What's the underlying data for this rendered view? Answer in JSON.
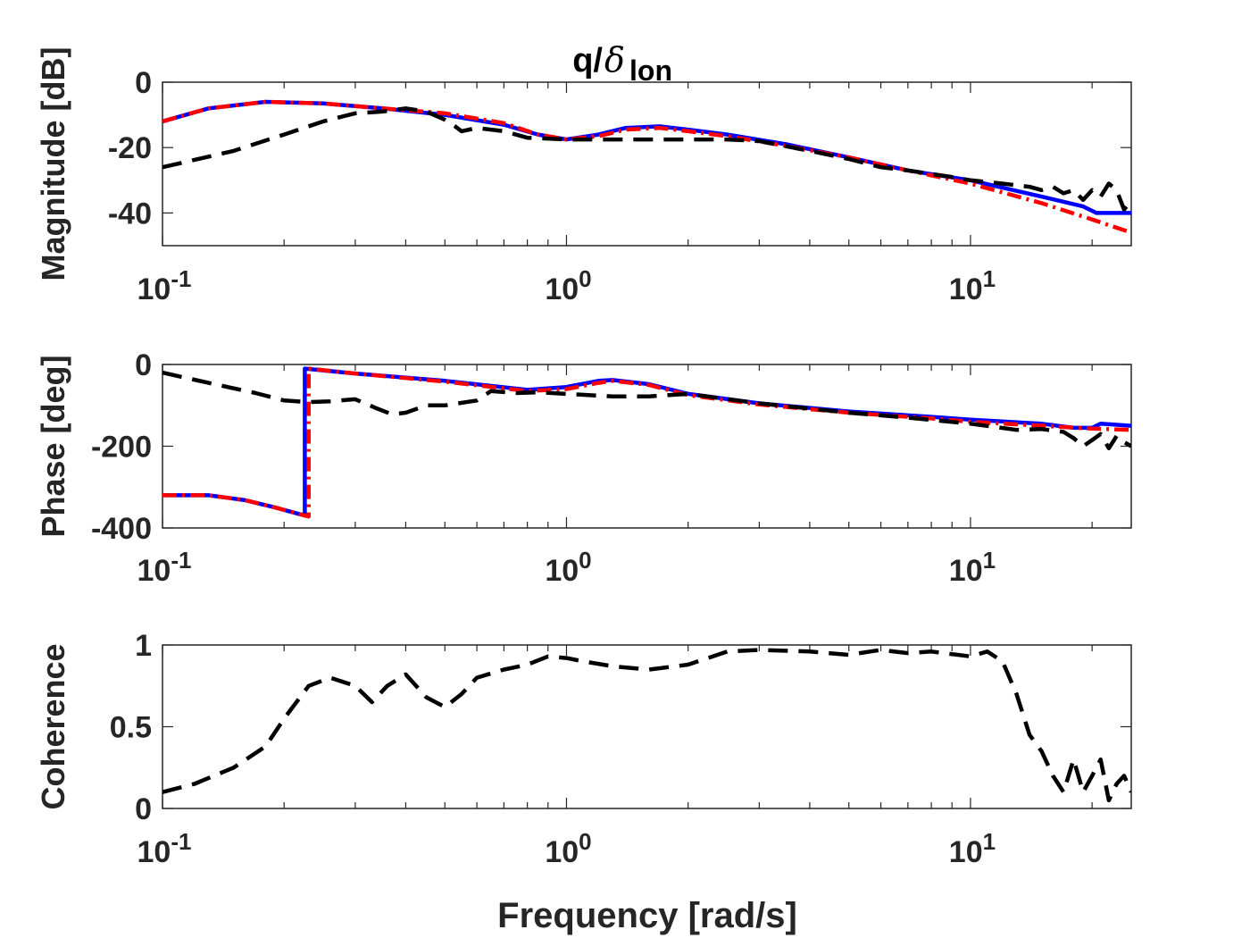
{
  "chart_data": {
    "type": "line",
    "title_main": "q/",
    "title_delta": "δ",
    "title_sub": "lon",
    "xlabel": "Frequency [rad/s]",
    "xscale": "log",
    "xlim": [
      0.1,
      25
    ],
    "xticks": [
      {
        "value": 0.1,
        "base": "10",
        "exp": "-1"
      },
      {
        "value": 1,
        "base": "10",
        "exp": "0"
      },
      {
        "value": 10,
        "base": "10",
        "exp": "1"
      }
    ],
    "series_styles": [
      {
        "name": "blue-solid",
        "color": "#0000ff",
        "dash": ""
      },
      {
        "name": "red-dashdot",
        "color": "#ff0000",
        "dash": "16 6 3 6"
      },
      {
        "name": "black-dashed",
        "color": "#000000",
        "dash": "22 12"
      }
    ],
    "panels": [
      {
        "id": "magnitude",
        "ylabel": "Magnitude [dB]",
        "ylim": [
          -50,
          0
        ],
        "yticks": [
          {
            "value": 0,
            "label": "0"
          },
          {
            "value": -20,
            "label": "-20"
          },
          {
            "value": -40,
            "label": "-40"
          }
        ],
        "series": [
          {
            "style": "blue-solid",
            "x": [
              0.1,
              0.13,
              0.18,
              0.25,
              0.35,
              0.5,
              0.7,
              0.85,
              1.0,
              1.2,
              1.4,
              1.7,
              2.0,
              2.5,
              3.5,
              5,
              7,
              10,
              15,
              19,
              20.5,
              25
            ],
            "y": [
              -12,
              -8,
              -6,
              -6.5,
              -8,
              -10,
              -13,
              -16,
              -17.5,
              -16,
              -14,
              -13.5,
              -14.5,
              -16,
              -19,
              -23,
              -27,
              -30,
              -35,
              -38,
              -40,
              -40
            ]
          },
          {
            "style": "red-dashdot",
            "x": [
              0.1,
              0.13,
              0.18,
              0.25,
              0.35,
              0.5,
              0.7,
              0.85,
              1.0,
              1.2,
              1.4,
              1.7,
              2.0,
              2.5,
              3.5,
              5,
              7,
              10,
              15,
              20,
              25
            ],
            "y": [
              -12,
              -8,
              -6,
              -6.5,
              -8,
              -9.5,
              -12.5,
              -16,
              -17.5,
              -16.5,
              -14.5,
              -14,
              -15,
              -16.5,
              -19.5,
              -23,
              -27,
              -31,
              -37,
              -42,
              -46
            ]
          },
          {
            "style": "black-dashed",
            "x": [
              0.1,
              0.15,
              0.2,
              0.25,
              0.3,
              0.35,
              0.4,
              0.45,
              0.5,
              0.53,
              0.55,
              0.6,
              0.7,
              0.8,
              1.0,
              1.3,
              1.6,
              2.0,
              2.5,
              3,
              4,
              5,
              6,
              7,
              9,
              10,
              12,
              14,
              15,
              16,
              17,
              18,
              19,
              20,
              21,
              22,
              23,
              24,
              25
            ],
            "y": [
              -26,
              -21,
              -16,
              -12,
              -9.5,
              -9,
              -8,
              -9,
              -11.5,
              -13.5,
              -15,
              -14,
              -15,
              -17,
              -17.5,
              -17.5,
              -17.5,
              -17.5,
              -17.5,
              -18,
              -21,
              -23.5,
              -26,
              -27,
              -29,
              -30,
              -31,
              -32,
              -33,
              -32,
              -34,
              -33,
              -36,
              -33,
              -35,
              -31,
              -33,
              -39,
              -36
            ]
          }
        ]
      },
      {
        "id": "phase",
        "ylabel": "Phase [deg]",
        "ylim": [
          -400,
          0
        ],
        "yticks": [
          {
            "value": 0,
            "label": "0"
          },
          {
            "value": -200,
            "label": "-200"
          },
          {
            "value": -400,
            "label": "-400"
          }
        ],
        "series": [
          {
            "style": "blue-solid",
            "x": [
              0.1,
              0.13,
              0.16,
              0.19,
              0.22,
              0.225,
              0.225,
              0.3,
              0.5,
              0.8,
              1.0,
              1.2,
              1.3,
              1.6,
              2.0,
              3,
              5,
              8,
              10,
              15,
              18,
              20,
              21,
              25
            ],
            "y": [
              -320,
              -320,
              -332,
              -350,
              -367,
              -367,
              -10,
              -22,
              -40,
              -62,
              -55,
              -40,
              -38,
              -48,
              -72,
              -95,
              -115,
              -128,
              -135,
              -145,
              -155,
              -155,
              -145,
              -150
            ]
          },
          {
            "style": "red-dashdot",
            "x": [
              0.1,
              0.13,
              0.16,
              0.19,
              0.22,
              0.23,
              0.23,
              0.3,
              0.5,
              0.8,
              1.0,
              1.2,
              1.3,
              1.6,
              2.0,
              3,
              5,
              8,
              10,
              15,
              20,
              25
            ],
            "y": [
              -320,
              -320,
              -332,
              -350,
              -367,
              -372,
              -10,
              -22,
              -42,
              -65,
              -60,
              -45,
              -40,
              -50,
              -75,
              -98,
              -118,
              -132,
              -140,
              -150,
              -157,
              -160
            ]
          },
          {
            "style": "black-dashed",
            "x": [
              0.1,
              0.13,
              0.17,
              0.2,
              0.23,
              0.26,
              0.3,
              0.34,
              0.37,
              0.4,
              0.45,
              0.5,
              0.6,
              0.65,
              0.75,
              0.85,
              1.0,
              1.3,
              1.6,
              2.0,
              3,
              5,
              7,
              10,
              13,
              15,
              17,
              18,
              19,
              20,
              21,
              22,
              23,
              24,
              25
            ],
            "y": [
              -20,
              -45,
              -70,
              -88,
              -92,
              -90,
              -85,
              -108,
              -122,
              -118,
              -100,
              -100,
              -88,
              -65,
              -70,
              -68,
              -72,
              -78,
              -78,
              -72,
              -95,
              -118,
              -130,
              -145,
              -160,
              -158,
              -165,
              -180,
              -200,
              -185,
              -170,
              -205,
              -175,
              -190,
              -200
            ]
          }
        ]
      },
      {
        "id": "coherence",
        "ylabel": "Coherence",
        "ylim": [
          0,
          1
        ],
        "yticks": [
          {
            "value": 1,
            "label": "1"
          },
          {
            "value": 0.5,
            "label": "0.5"
          },
          {
            "value": 0,
            "label": "0"
          }
        ],
        "series": [
          {
            "style": "black-dashed",
            "x": [
              0.1,
              0.12,
              0.15,
              0.18,
              0.2,
              0.23,
              0.26,
              0.3,
              0.33,
              0.36,
              0.4,
              0.45,
              0.5,
              0.55,
              0.6,
              0.7,
              0.8,
              0.9,
              1.0,
              1.1,
              1.3,
              1.6,
              2.0,
              2.5,
              3,
              4,
              5,
              6,
              7,
              8,
              10,
              11,
              12,
              13,
              14,
              15,
              16,
              17,
              18,
              19,
              20,
              21,
              22,
              23,
              24,
              25
            ],
            "y": [
              0.1,
              0.15,
              0.25,
              0.38,
              0.55,
              0.75,
              0.8,
              0.75,
              0.65,
              0.75,
              0.82,
              0.68,
              0.62,
              0.7,
              0.8,
              0.85,
              0.88,
              0.93,
              0.92,
              0.9,
              0.87,
              0.85,
              0.88,
              0.96,
              0.97,
              0.96,
              0.94,
              0.97,
              0.95,
              0.96,
              0.93,
              0.96,
              0.9,
              0.7,
              0.45,
              0.35,
              0.2,
              0.1,
              0.3,
              0.1,
              0.2,
              0.3,
              0.05,
              0.15,
              0.2,
              0.1
            ]
          }
        ]
      }
    ]
  }
}
